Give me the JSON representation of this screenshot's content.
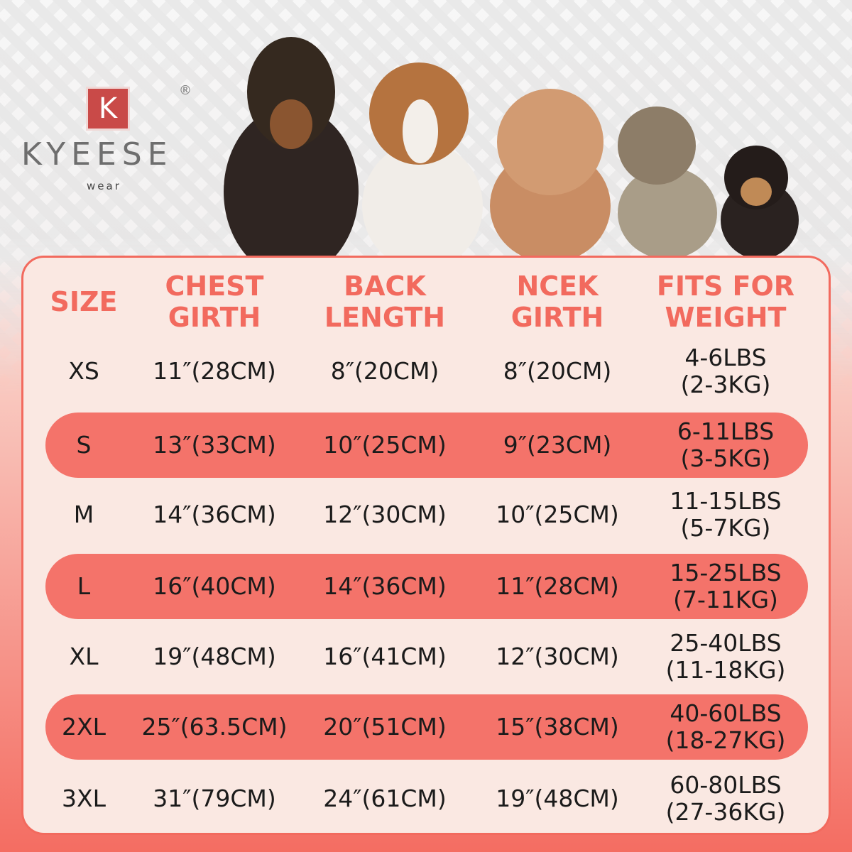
{
  "brand": {
    "logo_letter": "K",
    "registered": "®",
    "name": "KYEESE",
    "sub": "wear"
  },
  "table": {
    "headers": [
      [
        "SIZE"
      ],
      [
        "CHEST",
        "GIRTH"
      ],
      [
        "BACK",
        "LENGTH"
      ],
      [
        "NCEK",
        "GIRTH"
      ],
      [
        "FITS FOR",
        "WEIGHT"
      ]
    ],
    "rows": [
      [
        "XS",
        "11″(28CM)",
        "8″(20CM)",
        "8″(20CM)",
        [
          "4-6LBS",
          "(2-3KG)"
        ]
      ],
      [
        "S",
        "13″(33CM)",
        "10″(25CM)",
        "9″(23CM)",
        [
          "6-11LBS",
          "(3-5KG)"
        ]
      ],
      [
        "M",
        "14″(36CM)",
        "12″(30CM)",
        "10″(25CM)",
        [
          "11-15LBS",
          "(5-7KG)"
        ]
      ],
      [
        "L",
        "16″(40CM)",
        "14″(36CM)",
        "11″(28CM)",
        [
          "15-25LBS",
          "(7-11KG)"
        ]
      ],
      [
        "XL",
        "19″(48CM)",
        "16″(41CM)",
        "12″(30CM)",
        [
          "25-40LBS",
          "(11-18KG)"
        ]
      ],
      [
        "2XL",
        "25″(63.5CM)",
        "20″(51CM)",
        "15″(38CM)",
        [
          "40-60LBS",
          "(18-27KG)"
        ]
      ],
      [
        "3XL",
        "31″(79CM)",
        "24″(61CM)",
        "19″(48CM)",
        [
          "60-80LBS",
          "(27-36KG)"
        ]
      ]
    ]
  }
}
